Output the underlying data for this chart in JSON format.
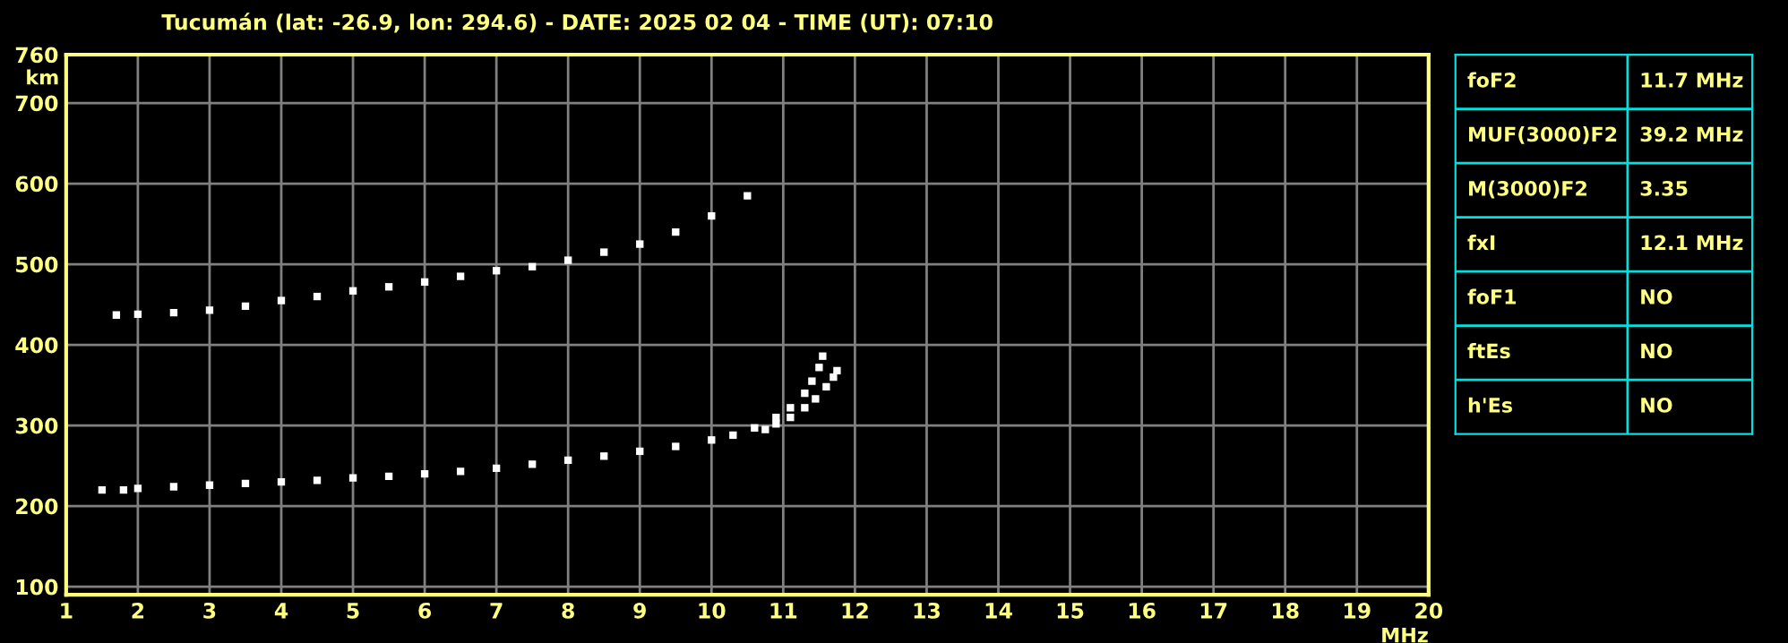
{
  "chart_data": [
    {
      "type": "scatter",
      "title": "Tucumán (lat: -26.9, lon: 294.6) - DATE: 2025 02 04 - TIME (UT): 07:10",
      "xlabel": "MHz",
      "ylabel": "km",
      "xlim": [
        1,
        20
      ],
      "xticks": [
        1,
        2,
        3,
        4,
        5,
        6,
        7,
        8,
        9,
        10,
        11,
        12,
        13,
        14,
        15,
        16,
        17,
        18,
        19,
        20
      ],
      "ylim": [
        90,
        760
      ],
      "yticks": [
        100,
        200,
        300,
        400,
        500,
        600,
        700,
        760
      ],
      "grid": true,
      "marker": "square",
      "series": [
        {
          "color": "#ffffff",
          "x": [
            1.5,
            1.8,
            2,
            2.5,
            3,
            3.5,
            4,
            4.5,
            5,
            5.5,
            6,
            6.5,
            7,
            7.5,
            8,
            8.5,
            9,
            9.5,
            10,
            10.3,
            10.6,
            10.9,
            11.1,
            11.3,
            11.4,
            11.5,
            11.55
          ],
          "values": [
            220,
            220,
            222,
            224,
            226,
            228,
            230,
            232,
            235,
            237,
            240,
            243,
            247,
            252,
            257,
            262,
            268,
            274,
            282,
            288,
            297,
            310,
            322,
            340,
            355,
            372,
            386
          ]
        },
        {
          "color": "#ffffff",
          "x": [
            10.75,
            10.9,
            11.1,
            11.3,
            11.45,
            11.6,
            11.7,
            11.75
          ],
          "values": [
            295,
            302,
            310,
            322,
            333,
            348,
            360,
            368
          ]
        },
        {
          "color": "#ffffff",
          "x": [
            1.7,
            2,
            2.5,
            3,
            3.5,
            4,
            4.5,
            5,
            5.5,
            6,
            6.5,
            7,
            7.5,
            8,
            8.5,
            9,
            9.5,
            10,
            10.5
          ],
          "values": [
            437,
            438,
            440,
            443,
            448,
            455,
            460,
            467,
            472,
            478,
            485,
            492,
            497,
            505,
            515,
            525,
            540,
            560,
            585
          ]
        }
      ]
    },
    {
      "type": "other",
      "annotations": [
        "foF2",
        "11.7 MHz",
        "MUF(3000)F2",
        "39.2 MHz",
        "M(3000)F2",
        "3.35",
        "fxI",
        "12.1 MHz",
        "foF1",
        "NO",
        "ftEs",
        "NO",
        "h'Es",
        "NO"
      ]
    }
  ]
}
